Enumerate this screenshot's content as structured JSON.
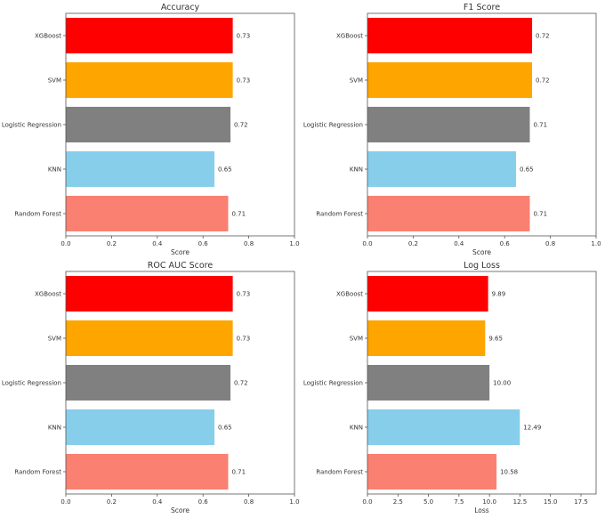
{
  "chart_data": [
    {
      "type": "bar",
      "orientation": "horizontal",
      "title": "Accuracy",
      "xlabel": "Score",
      "ylabel": "",
      "categories": [
        "XGBoost",
        "SVM",
        "Logistic Regression",
        "KNN",
        "Random Forest"
      ],
      "values": [
        0.73,
        0.73,
        0.72,
        0.65,
        0.71
      ],
      "value_labels": [
        "0.73",
        "0.73",
        "0.72",
        "0.65",
        "0.71"
      ],
      "xlim": [
        0,
        1.0
      ],
      "xticks": [
        "0.0",
        "0.2",
        "0.4",
        "0.6",
        "0.8",
        "1.0"
      ],
      "colors": [
        "#ff0000",
        "#ffa500",
        "#808080",
        "#87ceeb",
        "#fa8072"
      ],
      "grid": false
    },
    {
      "type": "bar",
      "orientation": "horizontal",
      "title": "F1 Score",
      "xlabel": "Score",
      "ylabel": "",
      "categories": [
        "XGBoost",
        "SVM",
        "Logistic Regression",
        "KNN",
        "Random Forest"
      ],
      "values": [
        0.72,
        0.72,
        0.71,
        0.65,
        0.71
      ],
      "value_labels": [
        "0.72",
        "0.72",
        "0.71",
        "0.65",
        "0.71"
      ],
      "xlim": [
        0,
        1.0
      ],
      "xticks": [
        "0.0",
        "0.2",
        "0.4",
        "0.6",
        "0.8",
        "1.0"
      ],
      "colors": [
        "#ff0000",
        "#ffa500",
        "#808080",
        "#87ceeb",
        "#fa8072"
      ],
      "grid": false
    },
    {
      "type": "bar",
      "orientation": "horizontal",
      "title": "ROC AUC Score",
      "xlabel": "Score",
      "ylabel": "",
      "categories": [
        "XGBoost",
        "SVM",
        "Logistic Regression",
        "KNN",
        "Random Forest"
      ],
      "values": [
        0.73,
        0.73,
        0.72,
        0.65,
        0.71
      ],
      "value_labels": [
        "0.73",
        "0.73",
        "0.72",
        "0.65",
        "0.71"
      ],
      "xlim": [
        0,
        1.0
      ],
      "xticks": [
        "0.0",
        "0.2",
        "0.4",
        "0.6",
        "0.8",
        "1.0"
      ],
      "colors": [
        "#ff0000",
        "#ffa500",
        "#808080",
        "#87ceeb",
        "#fa8072"
      ],
      "grid": false
    },
    {
      "type": "bar",
      "orientation": "horizontal",
      "title": "Log Loss",
      "xlabel": "Loss",
      "ylabel": "",
      "categories": [
        "XGBoost",
        "SVM",
        "Logistic Regression",
        "KNN",
        "Random Forest"
      ],
      "values": [
        9.89,
        9.65,
        10.0,
        12.49,
        10.58
      ],
      "value_labels": [
        "9.89",
        "9.65",
        "10.00",
        "12.49",
        "10.58"
      ],
      "xlim": [
        0,
        18.74
      ],
      "xticks": [
        "0.0",
        "2.5",
        "5.0",
        "7.5",
        "10.0",
        "12.5",
        "15.0",
        "17.5"
      ],
      "colors": [
        "#ff0000",
        "#ffa500",
        "#808080",
        "#87ceeb",
        "#fa8072"
      ],
      "grid": false
    }
  ]
}
